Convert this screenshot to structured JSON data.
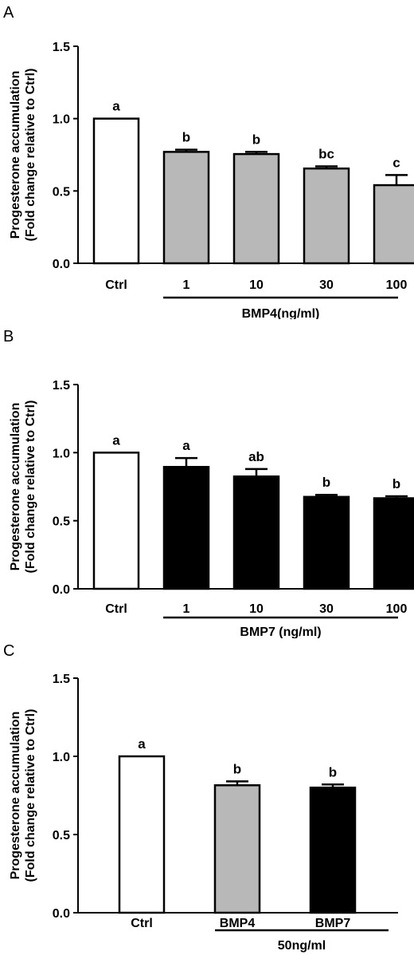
{
  "chart_data": [
    {
      "type": "bar",
      "panel_label": "A",
      "ylabel_lines": [
        "Progesterone accumulation",
        "(Fold change relative to Ctrl)"
      ],
      "ylim": [
        0,
        1.5
      ],
      "yticks": [
        "0.0",
        "0.5",
        "1.0",
        "1.5"
      ],
      "categories": [
        "Ctrl",
        "1",
        "10",
        "30",
        "100"
      ],
      "values": [
        1.0,
        0.77,
        0.755,
        0.655,
        0.54
      ],
      "errors": [
        0.0,
        0.015,
        0.015,
        0.015,
        0.07
      ],
      "significance": [
        "a",
        "b",
        "b",
        "bc",
        "c"
      ],
      "bar_fills": [
        "white",
        "gray",
        "gray",
        "gray",
        "gray"
      ],
      "group_label": "BMP4(ng/ml)",
      "group_span": [
        1,
        4
      ]
    },
    {
      "type": "bar",
      "panel_label": "B",
      "ylabel_lines": [
        "Progesterone accumulation",
        "(Fold change relative to Ctrl)"
      ],
      "ylim": [
        0,
        1.5
      ],
      "yticks": [
        "0.0",
        "0.5",
        "1.0",
        "1.5"
      ],
      "categories": [
        "Ctrl",
        "1",
        "10",
        "30",
        "100"
      ],
      "values": [
        1.0,
        0.895,
        0.825,
        0.675,
        0.665
      ],
      "errors": [
        0.0,
        0.065,
        0.055,
        0.015,
        0.015
      ],
      "significance": [
        "a",
        "a",
        "ab",
        "b",
        "b"
      ],
      "bar_fills": [
        "white",
        "black",
        "black",
        "black",
        "black"
      ],
      "group_label": "BMP7 (ng/ml)",
      "group_span": [
        1,
        4
      ]
    },
    {
      "type": "bar",
      "panel_label": "C",
      "ylabel_lines": [
        "Progesterone accumulation",
        "(Fold change relative to Ctrl)"
      ],
      "ylim": [
        0,
        1.5
      ],
      "yticks": [
        "0.0",
        "0.5",
        "1.0",
        "1.5"
      ],
      "categories": [
        "Ctrl",
        "BMP4",
        "BMP7"
      ],
      "values": [
        1.0,
        0.815,
        0.8
      ],
      "errors": [
        0.0,
        0.025,
        0.02
      ],
      "significance": [
        "a",
        "b",
        "b"
      ],
      "bar_fills": [
        "white",
        "gray",
        "black"
      ],
      "group_label": "50ng/ml",
      "group_span": [
        1,
        2
      ]
    }
  ],
  "colors": {
    "white": "#ffffff",
    "gray": "#b8b8b8",
    "black": "#000000",
    "axis": "#000000"
  }
}
